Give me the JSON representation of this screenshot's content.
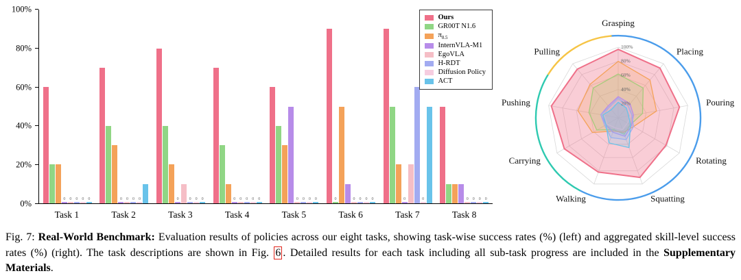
{
  "caption": {
    "fig_label": "Fig. 7:",
    "title": "Real-World Benchmark:",
    "text_before_ref": "Evaluation results of policies across our eight tasks, showing task-wise success rates (%) (left) and aggregated skill-level success rates (%) (right). The task descriptions are shown in Fig.",
    "fig_ref": "6",
    "text_after_ref": ". Detailed results for each task including all sub-task progress are included in the",
    "bold_end": "Supplementary Materials",
    "period": "."
  },
  "chart_data": [
    {
      "type": "bar",
      "title": "",
      "xlabel": "",
      "ylabel": "",
      "ylim": [
        0,
        100
      ],
      "yticks": [
        "0%",
        "20%",
        "40%",
        "60%",
        "80%",
        "100%"
      ],
      "grid": false,
      "legend_position": "upper right",
      "categories": [
        "Task 1",
        "Task 2",
        "Task 3",
        "Task 4",
        "Task 5",
        "Task 6",
        "Task 7",
        "Task 8"
      ],
      "series": [
        {
          "name": "Ours",
          "color": "#EF7089",
          "values": [
            60,
            70,
            80,
            70,
            60,
            90,
            90,
            50
          ]
        },
        {
          "name": "GR00T N1.6",
          "color": "#90D685",
          "values": [
            20,
            40,
            40,
            30,
            40,
            0,
            50,
            10
          ]
        },
        {
          "name": "π0.5",
          "color": "#F4A259",
          "values": [
            20,
            30,
            20,
            10,
            30,
            50,
            20,
            10
          ]
        },
        {
          "name": "InternVLA-M1",
          "color": "#B78CE9",
          "values": [
            0,
            0,
            0,
            0,
            50,
            10,
            0,
            10
          ]
        },
        {
          "name": "EgoVLA",
          "color": "#F5BEC6",
          "values": [
            0,
            0,
            10,
            0,
            0,
            0,
            20,
            0
          ]
        },
        {
          "name": "H-RDT",
          "color": "#A2ABF1",
          "values": [
            0,
            0,
            0,
            0,
            0,
            0,
            60,
            0
          ]
        },
        {
          "name": "Diffusion Policy",
          "color": "#F6CDE0",
          "values": [
            0,
            0,
            0,
            0,
            0,
            0,
            0,
            0
          ]
        },
        {
          "name": "ACT",
          "color": "#69C3EA",
          "values": [
            0,
            10,
            0,
            0,
            0,
            0,
            50,
            0
          ]
        }
      ],
      "zero_bar_label": "0"
    },
    {
      "type": "radar",
      "axes": [
        "Grasping",
        "Placing",
        "Pouring",
        "Rotating",
        "Squatting",
        "Walking",
        "Carrying",
        "Pushing",
        "Pulling"
      ],
      "ring_ticks": [
        "20%",
        "40%",
        "60%",
        "80%",
        "100%"
      ],
      "rlim": [
        0,
        100
      ],
      "outer_ring_colors": {
        "blue": "#4A9CEB",
        "teal": "#2EC9B0",
        "yellow": "#F6C445"
      },
      "series": [
        {
          "name": "Ours",
          "color": "#EF7089",
          "values": [
            97,
            92,
            88,
            78,
            90,
            82,
            88,
            96,
            90
          ]
        },
        {
          "name": "GR00T N1.6",
          "color": "#90D685",
          "values": [
            62,
            55,
            35,
            20,
            25,
            18,
            35,
            42,
            55
          ]
        },
        {
          "name": "π0.5",
          "color": "#F4A259",
          "values": [
            80,
            70,
            55,
            25,
            22,
            20,
            42,
            58,
            62
          ]
        },
        {
          "name": "InternVLA-M1",
          "color": "#B78CE9",
          "values": [
            30,
            26,
            22,
            22,
            28,
            22,
            20,
            25,
            22
          ]
        },
        {
          "name": "EgoVLA",
          "color": "#F5BEC6",
          "values": [
            24,
            20,
            18,
            15,
            18,
            15,
            18,
            20,
            18
          ]
        },
        {
          "name": "H-RDT",
          "color": "#A2ABF1",
          "values": [
            28,
            22,
            20,
            25,
            33,
            30,
            22,
            25,
            20
          ]
        },
        {
          "name": "ACT",
          "color": "#69C3EA",
          "values": [
            22,
            18,
            15,
            20,
            45,
            38,
            20,
            22,
            15
          ]
        }
      ]
    }
  ]
}
